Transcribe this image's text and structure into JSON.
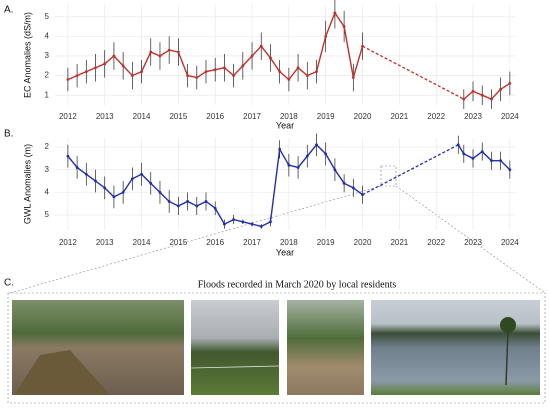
{
  "chart_data": [
    {
      "type": "line",
      "panel_label": "A.",
      "y_label": "EC Anomalies (dS/m)",
      "x_label": "Year",
      "xlim": [
        2011.65,
        2024.14
      ],
      "xticks": [
        2012,
        2013,
        2014,
        2015,
        2016,
        2017,
        2018,
        2019,
        2020,
        2021,
        2022,
        2023,
        2024
      ],
      "ylim": [
        0.5,
        5.6
      ],
      "yticks": [
        1,
        2,
        3,
        4,
        5
      ],
      "invert_y": false,
      "grid": true,
      "error_color": "#222222",
      "series": [
        {
          "name": "EC",
          "color": "#c0302a",
          "x": [
            2012.0,
            2012.25,
            2012.5,
            2012.75,
            2013.0,
            2013.25,
            2013.5,
            2013.75,
            2014.0,
            2014.25,
            2014.5,
            2014.75,
            2015.0,
            2015.25,
            2015.5,
            2015.75,
            2016.0,
            2016.25,
            2016.5,
            2016.75,
            2017.0,
            2017.25,
            2017.5,
            2017.75,
            2018.0,
            2018.25,
            2018.5,
            2018.75,
            2019.0,
            2019.25,
            2019.5,
            2019.75,
            2020.0,
            2022.75,
            2023.0,
            2023.25,
            2023.5,
            2023.75,
            2024.0
          ],
          "values": [
            1.8,
            2.0,
            2.2,
            2.4,
            2.6,
            3.0,
            2.5,
            2.0,
            2.2,
            3.2,
            3.0,
            3.3,
            3.2,
            2.0,
            1.9,
            2.2,
            2.3,
            2.4,
            2.0,
            2.5,
            3.0,
            3.5,
            2.9,
            2.2,
            1.8,
            2.4,
            2.0,
            2.2,
            4.0,
            5.2,
            4.5,
            1.9,
            3.5,
            0.8,
            1.2,
            1.0,
            0.8,
            1.3,
            1.6
          ],
          "errors": [
            0.6,
            0.6,
            0.6,
            0.7,
            0.7,
            0.7,
            0.7,
            0.7,
            0.6,
            0.7,
            0.7,
            0.7,
            0.7,
            0.6,
            0.6,
            0.6,
            0.6,
            0.7,
            0.6,
            0.7,
            0.7,
            0.7,
            0.7,
            0.6,
            0.6,
            0.7,
            0.7,
            0.6,
            0.8,
            0.8,
            0.8,
            0.7,
            0.7,
            0.5,
            0.5,
            0.5,
            0.5,
            0.6,
            0.6
          ]
        }
      ]
    },
    {
      "type": "line",
      "panel_label": "B.",
      "y_label": "GWL Anomalies (m)",
      "x_label": "Year",
      "xlim": [
        2011.65,
        2024.14
      ],
      "xticks": [
        2012,
        2013,
        2014,
        2015,
        2016,
        2017,
        2018,
        2019,
        2020,
        2021,
        2022,
        2023,
        2024
      ],
      "ylim": [
        1.6,
        5.66
      ],
      "yticks": [
        2,
        3,
        4,
        5
      ],
      "invert_y": true,
      "grid": true,
      "error_color": "#222222",
      "series": [
        {
          "name": "GWL",
          "color": "#1f2fb0",
          "x": [
            2012.0,
            2012.25,
            2012.5,
            2012.75,
            2013.0,
            2013.25,
            2013.5,
            2013.75,
            2014.0,
            2014.25,
            2014.5,
            2014.75,
            2015.0,
            2015.25,
            2015.5,
            2015.75,
            2016.0,
            2016.25,
            2016.5,
            2016.75,
            2017.0,
            2017.25,
            2017.5,
            2017.75,
            2018.0,
            2018.25,
            2018.5,
            2018.75,
            2019.0,
            2019.25,
            2019.5,
            2019.75,
            2020.0,
            2022.6,
            2022.75,
            2023.0,
            2023.25,
            2023.5,
            2023.75,
            2024.0
          ],
          "values": [
            2.4,
            2.9,
            3.2,
            3.5,
            3.8,
            4.2,
            4.0,
            3.4,
            3.2,
            3.6,
            4.0,
            4.4,
            4.6,
            4.4,
            4.6,
            4.4,
            4.7,
            5.4,
            5.2,
            5.3,
            5.4,
            5.5,
            5.3,
            2.1,
            2.8,
            2.9,
            2.4,
            1.9,
            2.3,
            3.0,
            3.6,
            3.8,
            4.1,
            1.9,
            2.3,
            2.5,
            2.2,
            2.6,
            2.6,
            3.0
          ],
          "errors": [
            0.5,
            0.5,
            0.5,
            0.5,
            0.5,
            0.5,
            0.5,
            0.5,
            0.5,
            0.5,
            0.5,
            0.5,
            0.4,
            0.4,
            0.4,
            0.4,
            0.3,
            0.2,
            0.2,
            0.1,
            0.1,
            0.1,
            0.2,
            0.4,
            0.5,
            0.5,
            0.5,
            0.5,
            0.5,
            0.5,
            0.4,
            0.4,
            0.4,
            0.4,
            0.4,
            0.4,
            0.4,
            0.4,
            0.4,
            0.4
          ]
        }
      ]
    }
  ],
  "panel_c": {
    "label": "C.",
    "title": "Floods recorded in March 2020 by local residents"
  }
}
